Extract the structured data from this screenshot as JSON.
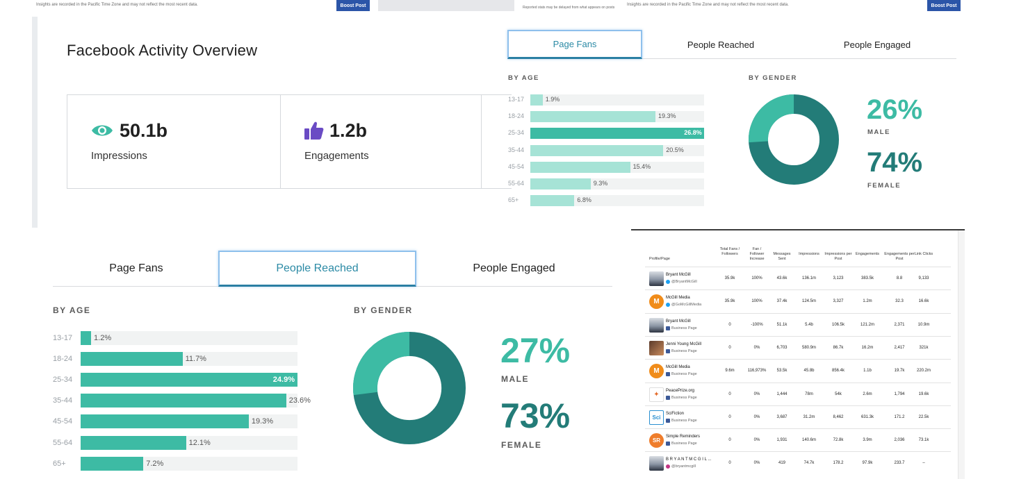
{
  "top_strip": {
    "left_note": "Insights are recorded in the Pacific Time Zone and may not reflect the most recent data.",
    "boost_label": "Boost Post",
    "mid_note": "Reported stats may be delayed from what appears on posts",
    "right_note": "Insights are recorded in the Pacific Time Zone and may not reflect the most recent data.",
    "boost_label_2": "Boost Post"
  },
  "overview": {
    "title": "Facebook Activity Overview",
    "cards": [
      {
        "icon": "eye-icon",
        "value": "50.1b",
        "label": "Impressions",
        "color": "#3dbba4"
      },
      {
        "icon": "thumbs-up-icon",
        "value": "1.2b",
        "label": "Engagements",
        "color": "#6a4bc4"
      }
    ]
  },
  "panel_top": {
    "tabs": [
      "Page Fans",
      "People Reached",
      "People Engaged"
    ],
    "active_tab": "Page Fans",
    "by_age_label": "BY AGE",
    "by_gender_label": "BY GENDER",
    "age": [
      {
        "label": "13-17",
        "value": 1.9,
        "text": "1.9%"
      },
      {
        "label": "18-24",
        "value": 19.3,
        "text": "19.3%"
      },
      {
        "label": "25-34",
        "value": 26.8,
        "text": "26.8%"
      },
      {
        "label": "35-44",
        "value": 20.5,
        "text": "20.5%"
      },
      {
        "label": "45-54",
        "value": 15.4,
        "text": "15.4%"
      },
      {
        "label": "55-64",
        "value": 9.3,
        "text": "9.3%"
      },
      {
        "label": "65+",
        "value": 6.8,
        "text": "6.8%"
      }
    ],
    "bar_color": "#a6e3d6",
    "bar_color_strong": "#3dbba4",
    "gender": {
      "male_pct": 26,
      "female_pct": 74,
      "male_text": "26%",
      "female_text": "74%",
      "male_label": "MALE",
      "female_label": "FEMALE"
    }
  },
  "panel_bottom": {
    "tabs": [
      "Page Fans",
      "People Reached",
      "People Engaged"
    ],
    "active_tab": "People Reached",
    "by_age_label": "BY AGE",
    "by_gender_label": "BY GENDER",
    "age": [
      {
        "label": "13-17",
        "value": 1.2,
        "text": "1.2%"
      },
      {
        "label": "18-24",
        "value": 11.7,
        "text": "11.7%"
      },
      {
        "label": "25-34",
        "value": 24.9,
        "text": "24.9%"
      },
      {
        "label": "35-44",
        "value": 23.6,
        "text": "23.6%"
      },
      {
        "label": "45-54",
        "value": 19.3,
        "text": "19.3%"
      },
      {
        "label": "55-64",
        "value": 12.1,
        "text": "12.1%"
      },
      {
        "label": "65+",
        "value": 7.2,
        "text": "7.2%"
      }
    ],
    "bar_color": "#3dbba4",
    "gender": {
      "male_pct": 27,
      "female_pct": 73,
      "male_text": "27%",
      "female_text": "73%",
      "male_label": "MALE",
      "female_label": "FEMALE"
    }
  },
  "colors": {
    "teal_light": "#3dbba4",
    "teal_dark": "#237c78",
    "active_tab": "#2b8aa5"
  },
  "table": {
    "headers": [
      "Profile/Page",
      "Total Fans / Followers",
      "Fan / Follower Increase",
      "Messages Sent",
      "Impressions",
      "Impressions per Post",
      "Engagements",
      "Engagements per Post",
      "Link Clicks"
    ],
    "rows": [
      {
        "name": "Bryant McGill",
        "sub": "@BryantMcGill",
        "network": "twitter",
        "avatar": "photo",
        "cells": [
          "35.9k",
          "100%",
          "43.6k",
          "136.1m",
          "3,123",
          "383.5k",
          "8.8",
          "9,133"
        ]
      },
      {
        "name": "McGill Media",
        "sub": "@GoMcGillMedia",
        "network": "twitter",
        "avatar": "M",
        "cells": [
          "35.9k",
          "100%",
          "37.4k",
          "124.5m",
          "3,327",
          "1.2m",
          "32.3",
          "16.6k"
        ]
      },
      {
        "name": "Bryant McGill",
        "sub": "Business Page",
        "network": "facebook",
        "avatar": "photo",
        "cells": [
          "0",
          "-100%",
          "51.1k",
          "5.4b",
          "106.5k",
          "121.2m",
          "2,371",
          "10.9m"
        ]
      },
      {
        "name": "Jenni Young McGill",
        "sub": "Business Page",
        "network": "facebook",
        "avatar": "photo2",
        "cells": [
          "0",
          "0%",
          "6,703",
          "580.9m",
          "86.7k",
          "16.2m",
          "2,417",
          "321k"
        ]
      },
      {
        "name": "McGill Media",
        "sub": "Business Page",
        "network": "facebook",
        "avatar": "M",
        "cells": [
          "9.6m",
          "116,973%",
          "53.5k",
          "45.8b",
          "856.4k",
          "1.1b",
          "19.7k",
          "220.2m"
        ]
      },
      {
        "name": "PeacePrize.org",
        "sub": "Business Page",
        "network": "facebook",
        "avatar": "bird",
        "cells": [
          "0",
          "0%",
          "1,444",
          "78m",
          "54k",
          "2.6m",
          "1,794",
          "19.6k"
        ]
      },
      {
        "name": "SciFiction",
        "sub": "Business Page",
        "network": "facebook",
        "avatar": "Sci",
        "cells": [
          "0",
          "0%",
          "3,687",
          "31.2m",
          "8,462",
          "631.3k",
          "171.2",
          "22.5k"
        ]
      },
      {
        "name": "Simple Reminders",
        "sub": "Business Page",
        "network": "facebook",
        "avatar": "SR",
        "cells": [
          "0",
          "0%",
          "1,931",
          "140.6m",
          "72.8k",
          "3.9m",
          "2,036",
          "73.1k"
        ]
      },
      {
        "name": "B R Y A N T M C G I L ...",
        "sub": "@bryantmcgill",
        "network": "instagram",
        "avatar": "photo",
        "cells": [
          "0",
          "0%",
          "419",
          "74.7k",
          "178.2",
          "97.9k",
          "233.7",
          "–"
        ]
      }
    ]
  }
}
